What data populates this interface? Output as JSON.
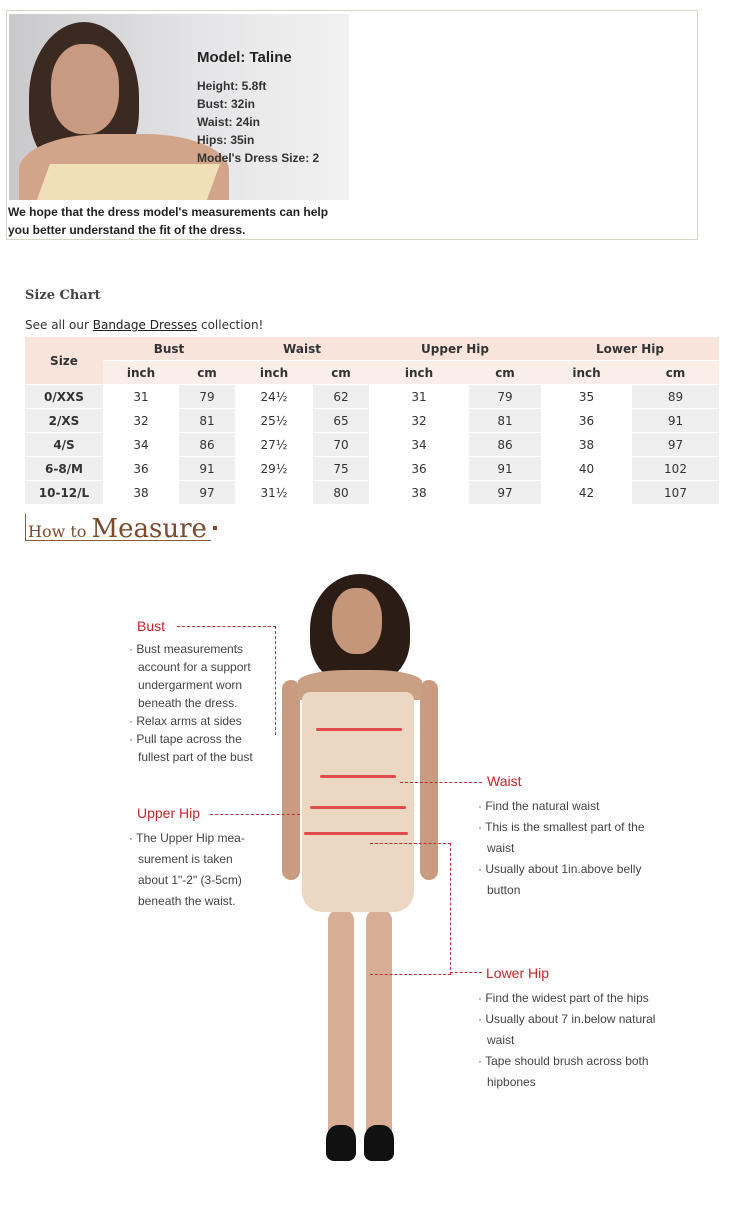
{
  "model": {
    "name": "Model: Taline",
    "stats": [
      "Height: 5.8ft",
      "Bust: 32in",
      "Waist: 24in",
      "Hips: 35in",
      "Model's Dress Size: 2"
    ],
    "note": [
      "We hope that the dress model's measurements can help",
      "you better understand the fit of the dress."
    ]
  },
  "size_chart": {
    "title": "Size Chart",
    "link_prefix": "See all our ",
    "link_text": "Bandage Dresses",
    "link_suffix": " collection!",
    "size_header": "Size",
    "groups": [
      "Bust",
      "Waist",
      "Upper Hip",
      "Lower Hip"
    ],
    "units": [
      "inch",
      "cm",
      "inch",
      "cm",
      "inch",
      "cm",
      "inch",
      "cm"
    ],
    "rows": [
      [
        "0/XXS",
        "31",
        "79",
        "24½",
        "62",
        "31",
        "79",
        "35",
        "89"
      ],
      [
        "2/XS",
        "32",
        "81",
        "25½",
        "65",
        "32",
        "81",
        "36",
        "91"
      ],
      [
        "4/S",
        "34",
        "86",
        "27½",
        "70",
        "34",
        "86",
        "38",
        "97"
      ],
      [
        "6-8/M",
        "36",
        "91",
        "29½",
        "75",
        "36",
        "91",
        "40",
        "102"
      ],
      [
        "10-12/L",
        "38",
        "97",
        "31½",
        "80",
        "38",
        "97",
        "42",
        "107"
      ]
    ]
  },
  "how_to": {
    "small": "How to",
    "big": "Measure"
  },
  "measure": {
    "bust": {
      "label": "Bust",
      "items": [
        [
          "Bust measurements",
          "account for a support",
          "undergarment worn",
          "beneath the dress."
        ],
        [
          "Relax arms at sides"
        ],
        [
          "Pull tape across the",
          "fullest part of the bust"
        ]
      ]
    },
    "upper_hip": {
      "label": "Upper Hip",
      "items": [
        [
          "The Upper Hip mea-",
          "surement is taken",
          "about 1\"-2\" (3-5cm)",
          "beneath the waist."
        ]
      ]
    },
    "waist": {
      "label": "Waist",
      "items": [
        [
          "Find the natural waist"
        ],
        [
          "This is the smallest part of the",
          "waist"
        ],
        [
          "Usually about 1in.above belly",
          "button"
        ]
      ]
    },
    "lower_hip": {
      "label": "Lower Hip",
      "items": [
        [
          "Find the widest part of the hips"
        ],
        [
          "Usually about 7 in.below natural",
          "waist"
        ],
        [
          "Tape should brush across both",
          "hipbones"
        ]
      ]
    }
  },
  "colors": {
    "label_red": "#c8262a",
    "header_bg": "#f9e4dc",
    "cell_gray": "#efefef",
    "brown": "#7a4a2e"
  }
}
